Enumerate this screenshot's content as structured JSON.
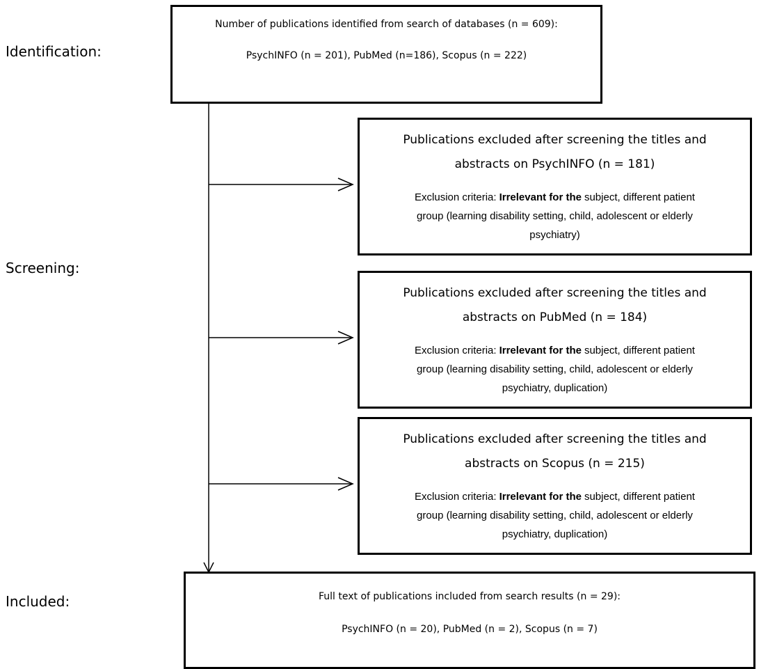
{
  "stages": [
    "Identification:",
    "Screening:",
    "Included:"
  ],
  "identified": {
    "line1": "Number of publications identified from search of databases (n = 609):",
    "line2": "PsychINFO (n = 201), PubMed (n=186), Scopus (n = 222)"
  },
  "excluded": [
    {
      "title_lines": [
        "Publications excluded after screening the titles and",
        "abstracts on PsychINFO (n = 181)"
      ],
      "criteria_label": "Exclusion criteria:",
      "criteria_bold": "Irrelevant for the",
      "criteria_lines": [
        "subject, different patient",
        "group (learning disability setting, child, adolescent or elderly",
        "psychiatry)"
      ]
    },
    {
      "title_lines": [
        "Publications excluded after screening the titles and",
        "abstracts on PubMed (n = 184)"
      ],
      "criteria_label": "Exclusion criteria:",
      "criteria_bold": "Irrelevant for the",
      "criteria_lines": [
        "subject, different patient",
        "group (learning disability setting, child, adolescent or elderly",
        "psychiatry, duplication)"
      ]
    },
    {
      "title_lines": [
        "Publications excluded after screening the titles and",
        "abstracts on Scopus (n = 215)"
      ],
      "criteria_label": "Exclusion criteria:",
      "criteria_bold": "Irrelevant for the",
      "criteria_lines": [
        "subject, different patient",
        "group (learning disability setting, child, adolescent or elderly",
        "psychiatry, duplication)"
      ]
    }
  ],
  "included": {
    "line1": "Full text of publications included from search results (n = 29):",
    "line2": "PsychINFO (n = 20), PubMed (n = 2), Scopus (n = 7)"
  }
}
